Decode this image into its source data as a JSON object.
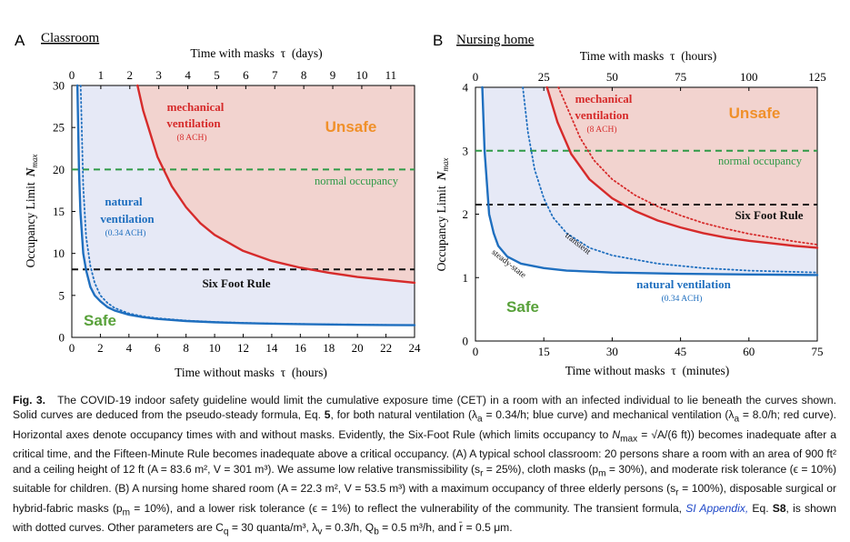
{
  "chart_data": [
    {
      "type": "line",
      "panel_letter": "A",
      "panel_title": "Classroom",
      "xlabel": "Time without masks  τ  (hours)",
      "x2label": "Time with masks  τ  (days)",
      "ylabel": "Occupancy Limit",
      "ylabel_var": "N",
      "ylabel_sub": "max",
      "xlim": [
        0,
        24
      ],
      "x2lim": [
        0,
        11.82
      ],
      "ylim": [
        0,
        30
      ],
      "x_ticks": [
        0,
        2,
        4,
        6,
        8,
        10,
        12,
        14,
        16,
        18,
        20,
        22,
        24
      ],
      "x2_ticks": [
        0,
        1,
        2,
        3,
        4,
        5,
        6,
        7,
        8,
        9,
        10,
        11
      ],
      "y_ticks": [
        0,
        5,
        10,
        15,
        20,
        25,
        30
      ],
      "normal_occupancy": 20,
      "six_foot": 8.1,
      "series": [
        {
          "name": "natural ventilation",
          "color": "#1f6fbf",
          "style": "solid",
          "x": [
            0.39,
            0.5,
            0.6,
            0.8,
            1.0,
            1.3,
            1.6,
            2,
            2.5,
            3,
            4,
            5,
            6,
            8,
            10,
            12,
            14,
            16,
            18,
            20,
            22,
            24
          ],
          "y": [
            30,
            20,
            15,
            10,
            8,
            6,
            5,
            4.3,
            3.6,
            3.2,
            2.7,
            2.4,
            2.2,
            1.95,
            1.8,
            1.7,
            1.63,
            1.58,
            1.54,
            1.5,
            1.47,
            1.45
          ]
        },
        {
          "name": "",
          "color": "#1f6fbf",
          "style": "dotted",
          "x": [
            0.62,
            0.8,
            1.0,
            1.3,
            1.6,
            2,
            2.5,
            3,
            4,
            5,
            6,
            8,
            10,
            12,
            14,
            16,
            18,
            20,
            22,
            24
          ],
          "y": [
            30,
            18,
            12,
            8.5,
            6.5,
            5,
            4.1,
            3.5,
            2.85,
            2.5,
            2.28,
            2.0,
            1.84,
            1.73,
            1.65,
            1.6,
            1.55,
            1.51,
            1.48,
            1.46
          ]
        },
        {
          "name": "mechanical ventilation",
          "color": "#d62b2b",
          "style": "solid",
          "x": [
            4.6,
            5,
            6,
            7,
            8,
            9,
            10,
            12,
            14,
            16,
            18,
            20,
            22,
            24
          ],
          "y": [
            30,
            27,
            21.5,
            18,
            15.5,
            13.6,
            12.2,
            10.3,
            9.1,
            8.3,
            7.7,
            7.2,
            6.85,
            6.5
          ]
        }
      ],
      "annotations": [
        {
          "text": "Unsafe",
          "color": "#f0902a"
        },
        {
          "text": "Safe",
          "color": "#58a13a"
        },
        {
          "text": "normal occupancy",
          "color": "#2f9a47"
        },
        {
          "text": "Six Foot Rule",
          "color": "#111111"
        },
        {
          "text": "natural",
          "color": "#1f6fbf"
        },
        {
          "text": "ventilation",
          "color": "#1f6fbf"
        },
        {
          "text": "(0.34 ACH)",
          "color": "#1f6fbf"
        },
        {
          "text": "mechanical",
          "color": "#d62b2b"
        },
        {
          "text": "ventilation",
          "color": "#d62b2b"
        },
        {
          "text": "(8 ACH)",
          "color": "#d62b2b"
        }
      ]
    },
    {
      "type": "line",
      "panel_letter": "B",
      "panel_title": "Nursing home",
      "xlabel": "Time without masks  τ  (minutes)",
      "x2label": "Time with masks  τ  (hours)",
      "ylabel": "Occupancy Limit",
      "ylabel_var": "N",
      "ylabel_sub": "max",
      "xlim": [
        0,
        75
      ],
      "x2lim": [
        0,
        125
      ],
      "ylim": [
        0,
        4
      ],
      "x_ticks": [
        0,
        15,
        30,
        45,
        60,
        75
      ],
      "x2_ticks": [
        0,
        25,
        50,
        75,
        100,
        125
      ],
      "y_ticks": [
        0,
        1,
        2,
        3,
        4
      ],
      "normal_occupancy": 3,
      "six_foot": 2.15,
      "series": [
        {
          "name": "steady-state",
          "color": "#1f6fbf",
          "style": "solid",
          "x": [
            1.5,
            2,
            3,
            4,
            5,
            7,
            10,
            15,
            20,
            30,
            45,
            60,
            75
          ],
          "y": [
            4,
            3,
            2,
            1.7,
            1.5,
            1.33,
            1.22,
            1.15,
            1.11,
            1.08,
            1.06,
            1.05,
            1.04
          ]
        },
        {
          "name": "transient",
          "color": "#1f6fbf",
          "style": "dotted",
          "x": [
            10.4,
            11.5,
            13,
            15,
            17,
            20,
            25,
            30,
            40,
            50,
            60,
            75
          ],
          "y": [
            4,
            3.3,
            2.7,
            2.25,
            1.95,
            1.7,
            1.47,
            1.35,
            1.22,
            1.15,
            1.11,
            1.08
          ]
        },
        {
          "name": "",
          "color": "#d62b2b",
          "style": "solid",
          "x": [
            15.7,
            18,
            21,
            25,
            30,
            35,
            40,
            45,
            50,
            55,
            60,
            65,
            70,
            75
          ],
          "y": [
            4,
            3.45,
            2.95,
            2.55,
            2.25,
            2.05,
            1.9,
            1.79,
            1.7,
            1.63,
            1.58,
            1.54,
            1.5,
            1.47
          ]
        },
        {
          "name": "",
          "color": "#d62b2b",
          "style": "dotted",
          "x": [
            18.2,
            20,
            23,
            26,
            30,
            35,
            40,
            45,
            50,
            55,
            60,
            65,
            70,
            75
          ],
          "y": [
            4,
            3.7,
            3.2,
            2.85,
            2.55,
            2.3,
            2.12,
            1.98,
            1.86,
            1.77,
            1.69,
            1.63,
            1.57,
            1.52
          ]
        }
      ],
      "annotations": [
        {
          "text": "Unsafe",
          "color": "#f0902a"
        },
        {
          "text": "Safe",
          "color": "#58a13a"
        },
        {
          "text": "normal occupancy",
          "color": "#2f9a47"
        },
        {
          "text": "Six Foot Rule",
          "color": "#111111"
        },
        {
          "text": "natural ventilation",
          "color": "#1f6fbf"
        },
        {
          "text": "(0.34 ACH)",
          "color": "#1f6fbf"
        },
        {
          "text": "mechanical",
          "color": "#d62b2b"
        },
        {
          "text": "ventilation",
          "color": "#d62b2b"
        },
        {
          "text": "(8 ACH)",
          "color": "#d62b2b"
        },
        {
          "text": "steady-state",
          "color": "#111111"
        },
        {
          "text": "transient",
          "color": "#111111"
        }
      ]
    }
  ],
  "caption": {
    "label": "Fig. 3.",
    "p1": "The COVID-19 indoor safety guideline would limit the cumulative exposure time (CET) in a room with an infected individual to lie beneath the curves shown. Solid curves are deduced from the pseudo-steady formula, Eq. ",
    "eq5": "5",
    "p2": ", for both natural ventilation (λ",
    "sub_a1": "a",
    "p3": " = 0.34/h; blue curve) and mechanical ventilation (λ",
    "sub_a2": "a",
    "p4": " = 8.0/h; red curve). Horizontal axes denote occupancy times with and without masks. Evidently, the Six-Foot Rule (which limits occupancy to ",
    "nmax": "N",
    "nmax_sub": "max",
    "p5": " = √A/(6 ft)) becomes inadequate after a critical time, and the Fifteen-Minute Rule becomes inadequate above a critical occupancy. (A) A typical school classroom: 20 persons share a room with an area of 900 ft² and a ceiling height of 12 ft (A = 83.6 m², V = 301 m³). We assume low relative transmissibility (s",
    "sub_r1": "r",
    "p6": " = 25%), cloth masks (p",
    "sub_m1": "m",
    "p7": " = 30%), and moderate risk tolerance (ϵ = 10%) suitable for children. (B) A nursing home shared room (A = 22.3 m², V = 53.5 m³) with a maximum occupancy of three elderly persons (s",
    "sub_r2": "r",
    "p8": " = 100%), disposable surgical or hybrid-fabric masks (p",
    "sub_m2": "m",
    "p9": " = 10%), and a lower risk tolerance (ϵ = 1%) to reflect the vulnerability of the community. The transient formula, ",
    "link": "SI Appendix,",
    "p10": " Eq. ",
    "eqS8": "S8",
    "p11": ", is shown with dotted curves. Other parameters are C",
    "sub_q": "q",
    "p12": " = 30 quanta/m³, λ",
    "sub_v": "v",
    "p13": " = 0.3/h, Q",
    "sub_b": "b",
    "p14": " = 0.5 m³/h, and r̄ = 0.5 μm."
  }
}
